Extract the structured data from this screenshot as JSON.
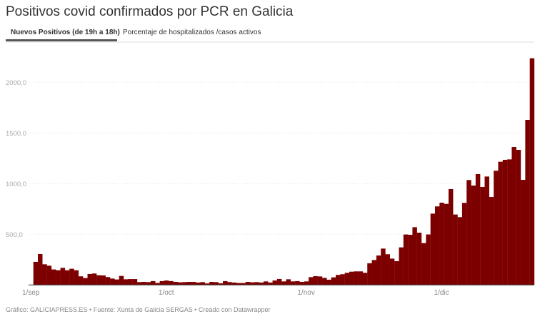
{
  "title": "Positivos covid confirmados por PCR en Galicia",
  "tabs": [
    {
      "label": "Nuevos Positivos (de 19h a 18h)",
      "active": true
    },
    {
      "label": "Porcentaje de hospitalizados /casos activos",
      "active": false
    }
  ],
  "footer": "Gráfico: GALICIAPRESS.ES • Fuente: Xunta de Galicia SERGAS • Creado con Datawrapper",
  "chart_data": {
    "type": "bar",
    "title": "Positivos covid confirmados por PCR en Galicia",
    "xlabel": "",
    "ylabel": "",
    "ylim": [
      0,
      2250
    ],
    "grid": true,
    "bar_color": "#7d0000",
    "yticks": [
      {
        "value": 500,
        "label": "500,0"
      },
      {
        "value": 1000,
        "label": "1000,0"
      },
      {
        "value": 1500,
        "label": "1500,0"
      },
      {
        "value": 2000,
        "label": "2000,0"
      }
    ],
    "xticks": [
      {
        "category": "1/sep",
        "label": "1/sep"
      },
      {
        "category": "1/oct",
        "label": "1/oct"
      },
      {
        "category": "1/nov",
        "label": "1/nov"
      },
      {
        "category": "1/dic",
        "label": "1/dic"
      }
    ],
    "categories": [
      "1/sep",
      "2/sep",
      "3/sep",
      "4/sep",
      "5/sep",
      "6/sep",
      "7/sep",
      "8/sep",
      "9/sep",
      "10/sep",
      "11/sep",
      "12/sep",
      "13/sep",
      "14/sep",
      "15/sep",
      "16/sep",
      "17/sep",
      "18/sep",
      "19/sep",
      "20/sep",
      "21/sep",
      "22/sep",
      "23/sep",
      "24/sep",
      "25/sep",
      "26/sep",
      "27/sep",
      "28/sep",
      "29/sep",
      "30/sep",
      "1/oct",
      "2/oct",
      "3/oct",
      "4/oct",
      "5/oct",
      "6/oct",
      "7/oct",
      "8/oct",
      "9/oct",
      "10/oct",
      "11/oct",
      "12/oct",
      "13/oct",
      "14/oct",
      "15/oct",
      "16/oct",
      "17/oct",
      "18/oct",
      "19/oct",
      "20/oct",
      "21/oct",
      "22/oct",
      "23/oct",
      "24/oct",
      "25/oct",
      "26/oct",
      "27/oct",
      "28/oct",
      "29/oct",
      "30/oct",
      "31/oct",
      "1/nov",
      "2/nov",
      "3/nov",
      "4/nov",
      "5/nov",
      "6/nov",
      "7/nov",
      "8/nov",
      "9/nov",
      "10/nov",
      "11/nov",
      "12/nov",
      "13/nov",
      "14/nov",
      "15/nov",
      "16/nov",
      "17/nov",
      "18/nov",
      "19/nov",
      "20/nov",
      "21/nov",
      "22/nov",
      "23/nov",
      "24/nov",
      "25/nov",
      "26/nov",
      "27/nov",
      "28/nov",
      "29/nov",
      "30/nov",
      "1/dic",
      "2/dic",
      "3/dic",
      "4/dic",
      "5/dic",
      "6/dic",
      "7/dic",
      "8/dic",
      "9/dic",
      "10/dic",
      "11/dic",
      "12/dic",
      "13/dic",
      "14/dic",
      "15/dic",
      "16/dic",
      "17/dic",
      "18/dic",
      "19/dic",
      "20/dic"
    ],
    "values": [
      228,
      305,
      204,
      190,
      153,
      145,
      169,
      145,
      160,
      145,
      85,
      68,
      108,
      113,
      96,
      94,
      78,
      63,
      54,
      89,
      56,
      58,
      58,
      28,
      30,
      28,
      38,
      20,
      38,
      44,
      38,
      30,
      26,
      28,
      30,
      30,
      24,
      28,
      15,
      30,
      28,
      16,
      38,
      28,
      24,
      19,
      19,
      30,
      26,
      28,
      24,
      35,
      24,
      44,
      59,
      35,
      56,
      35,
      38,
      30,
      35,
      77,
      87,
      84,
      70,
      52,
      75,
      99,
      106,
      120,
      131,
      134,
      134,
      120,
      214,
      246,
      291,
      359,
      303,
      260,
      235,
      371,
      498,
      495,
      570,
      516,
      413,
      498,
      704,
      775,
      812,
      800,
      946,
      695,
      669,
      810,
      1035,
      981,
      1094,
      967,
      1070,
      868,
      1127,
      1216,
      1235,
      1239,
      1361,
      1333,
      1037,
      1629,
      2237
    ]
  }
}
